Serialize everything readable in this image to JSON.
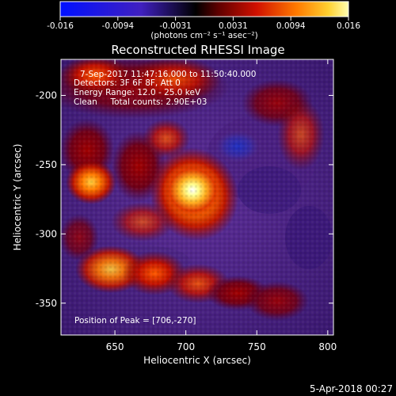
{
  "colorbar": {
    "ticks": [
      "-0.016",
      "-0.0094",
      "-0.0031",
      "0.0031",
      "0.0094",
      "0.016"
    ],
    "unit_label": "(photons cm⁻² s⁻¹ asec⁻²)"
  },
  "title": "Reconstructed RHESSI Image",
  "info": {
    "line1": "7-Sep-2017 11:47:16.000 to 11:50:40.000",
    "line2": "Detectors: 3F 6F 8F, Att 0",
    "line3": "Energy Range: 12.0 - 25.0 keV",
    "line4": "Clean     Total counts: 2.90E+03"
  },
  "peak_text": "Position of Peak = [706,-270]",
  "axes": {
    "xlabel": "Heliocentric X (arcsec)",
    "ylabel": "Heliocentric Y (arcsec)",
    "xticks": [
      "650",
      "700",
      "750",
      "800"
    ],
    "yticks": [
      "-200",
      "-250",
      "-300",
      "-350"
    ],
    "xlim": [
      612,
      804
    ],
    "ylim": [
      -373,
      -174
    ]
  },
  "footer_date": "5-Apr-2018 00:27",
  "colors": {
    "background": "#000000",
    "negative": "#1020ff",
    "zero": "#000000",
    "low": "#b00000",
    "mid": "#ff6a00",
    "high": "#ffff80",
    "peak": "#ffffff",
    "diffuse": "#5a2a90"
  }
}
